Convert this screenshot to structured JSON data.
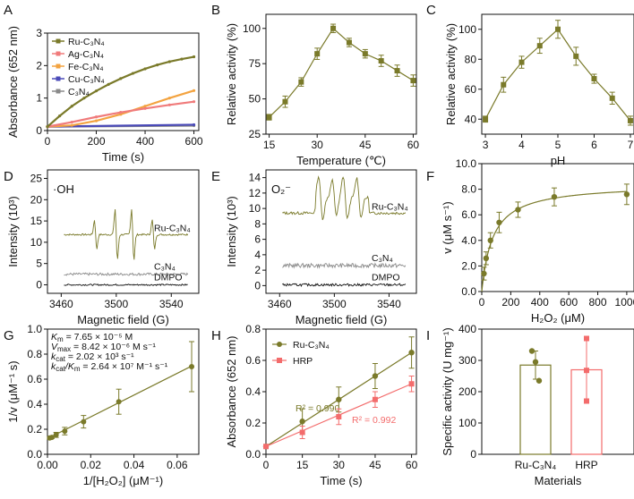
{
  "colors": {
    "olive": "#7a7a2a",
    "ag": "#f07b7b",
    "fe": "#f3a340",
    "cu": "#4a4ab8",
    "c3n4": "#8a8a8a",
    "hrp": "#f36c6c",
    "black": "#111111"
  },
  "chart_data": [
    {
      "id": "A",
      "type": "line",
      "panel_label": "A",
      "xlabel": "Time (s)",
      "ylabel": "Absorbance (652 nm)",
      "xlim": [
        0,
        620
      ],
      "ylim": [
        0,
        3
      ],
      "xticks": [
        "0",
        "200",
        "400",
        "600"
      ],
      "yticks": [
        "0",
        "1",
        "2",
        "3"
      ],
      "series": [
        {
          "name": "Ru-C₃N₄",
          "color": "#7a7a2a",
          "x": [
            0,
            50,
            100,
            150,
            200,
            250,
            300,
            350,
            400,
            450,
            500,
            550,
            600
          ],
          "y": [
            0.12,
            0.45,
            0.75,
            1.0,
            1.22,
            1.42,
            1.6,
            1.76,
            1.9,
            2.02,
            2.12,
            2.2,
            2.27
          ]
        },
        {
          "name": "Ag-C₃N₄",
          "color": "#f07b7b",
          "x": [
            0,
            100,
            200,
            300,
            400,
            500,
            600
          ],
          "y": [
            0.12,
            0.26,
            0.42,
            0.56,
            0.68,
            0.79,
            0.89
          ]
        },
        {
          "name": "Fe-C₃N₄",
          "color": "#f3a340",
          "x": [
            0,
            100,
            200,
            300,
            400,
            500,
            600
          ],
          "y": [
            0.12,
            0.16,
            0.3,
            0.5,
            0.75,
            1.0,
            1.23
          ]
        },
        {
          "name": "Cu-C₃N₄",
          "color": "#4a4ab8",
          "x": [
            0,
            600
          ],
          "y": [
            0.12,
            0.18
          ]
        },
        {
          "name": "C₃N₄",
          "color": "#8a8a8a",
          "x": [
            0,
            600
          ],
          "y": [
            0.12,
            0.15
          ]
        }
      ]
    },
    {
      "id": "B",
      "type": "line",
      "panel_label": "B",
      "xlabel": "Temperature (℃)",
      "ylabel": "Relative activity (%)",
      "xlim": [
        14,
        61
      ],
      "ylim": [
        25,
        110
      ],
      "xticks": [
        "15",
        "30",
        "45",
        "60"
      ],
      "yticks": [
        "25",
        "50",
        "75",
        "100"
      ],
      "x": [
        15,
        20,
        25,
        30,
        35,
        40,
        45,
        50,
        55,
        60
      ],
      "y": [
        37,
        48,
        62,
        82,
        100,
        90,
        82,
        77,
        70,
        63
      ],
      "err": [
        2,
        4,
        3,
        4,
        3,
        3,
        3,
        4,
        4,
        4
      ]
    },
    {
      "id": "C",
      "type": "line",
      "panel_label": "C",
      "xlabel": "pH",
      "ylabel": "Relative activity (%)",
      "xlim": [
        2.9,
        7.1
      ],
      "ylim": [
        30,
        110
      ],
      "xticks": [
        "3",
        "4",
        "5",
        "6",
        "7"
      ],
      "yticks": [
        "40",
        "60",
        "80",
        "100"
      ],
      "x": [
        3,
        3.5,
        4,
        4.5,
        5,
        5.5,
        6,
        6.5,
        7
      ],
      "y": [
        40,
        63,
        78,
        89,
        100,
        82,
        67,
        54,
        39
      ],
      "err": [
        2,
        5,
        4,
        5,
        6,
        6,
        3,
        4,
        3
      ]
    },
    {
      "id": "D",
      "type": "line",
      "panel_label": "D",
      "xlabel": "Magnetic field (G)",
      "ylabel": "Intensity (10³)",
      "xlim": [
        3450,
        3560
      ],
      "ylim": [
        -2,
        27
      ],
      "xticks": [
        "3460",
        "3500",
        "3540"
      ],
      "yticks": [
        "0",
        "5",
        "10",
        "15",
        "20",
        "25"
      ],
      "annotation": "·OH",
      "series": [
        {
          "name": "Ru-C₃N₄",
          "color": "#7a7a2a",
          "baseline": 11.8
        },
        {
          "name": "C₃N₄",
          "color": "#8a8a8a",
          "baseline": 2.5
        },
        {
          "name": "DMPO",
          "color": "#111111",
          "baseline": 0
        }
      ]
    },
    {
      "id": "E",
      "type": "line",
      "panel_label": "E",
      "xlabel": "Magnetic field (G)",
      "ylabel": "Intensity (10³)",
      "xlim": [
        3450,
        3560
      ],
      "ylim": [
        -1,
        15
      ],
      "xticks": [
        "3460",
        "3500",
        "3540"
      ],
      "yticks": [
        "0",
        "2",
        "4",
        "6",
        "8",
        "10",
        "12",
        "14"
      ],
      "annotation": "O₂⁻",
      "series": [
        {
          "name": "Ru-C₃N₄",
          "color": "#7a7a2a",
          "baseline": 9.4
        },
        {
          "name": "C₃N₄",
          "color": "#8a8a8a",
          "baseline": 2.6
        },
        {
          "name": "DMPO",
          "color": "#111111",
          "baseline": 0.1
        }
      ]
    },
    {
      "id": "F",
      "type": "scatter",
      "panel_label": "F",
      "xlabel": "H₂O₂ (μM)",
      "ylabel": "v (μM s⁻¹)",
      "xlim": [
        0,
        1050
      ],
      "ylim": [
        0,
        10
      ],
      "xticks": [
        "0",
        "200",
        "400",
        "600",
        "800",
        "1000"
      ],
      "yticks": [
        "0.0",
        "2.0",
        "4.0",
        "6.0",
        "8.0",
        "10.0"
      ],
      "x": [
        15,
        30,
        60,
        120,
        250,
        500,
        1000
      ],
      "y": [
        1.4,
        2.6,
        4.0,
        5.4,
        6.4,
        7.4,
        7.6
      ],
      "err": [
        0.5,
        0.5,
        0.6,
        0.8,
        0.6,
        0.7,
        0.8
      ],
      "fit": {
        "vmax": 8.42,
        "km": 76.5
      }
    },
    {
      "id": "G",
      "type": "scatter",
      "panel_label": "G",
      "xlabel": "1/[H₂O₂] (μM⁻¹)",
      "ylabel": "1/v (μM⁻¹ s)",
      "xlim": [
        0,
        0.07
      ],
      "ylim": [
        0,
        1.0
      ],
      "xticks": [
        "0.00",
        "0.02",
        "0.04",
        "0.06"
      ],
      "yticks": [
        "0.0",
        "0.2",
        "0.4",
        "0.6",
        "0.8",
        "1.0"
      ],
      "x": [
        0.001,
        0.002,
        0.004,
        0.008,
        0.0167,
        0.033,
        0.0667
      ],
      "y": [
        0.13,
        0.135,
        0.155,
        0.185,
        0.26,
        0.42,
        0.7
      ],
      "err": [
        0.01,
        0.01,
        0.02,
        0.03,
        0.05,
        0.1,
        0.2
      ],
      "annotations": [
        {
          "sym": "K",
          "sub": "m",
          "text": " = 7.65 × 10⁻⁵ M"
        },
        {
          "sym": "V",
          "sub": "max",
          "text": " = 8.42 × 10⁻⁶ M s⁻¹"
        },
        {
          "sym": "k",
          "sub": "cat",
          "text": " = 2.02 × 10³ s⁻¹"
        },
        {
          "sym": "k",
          "sub": "cat",
          "sym2": "/K",
          "sub2": "m",
          "text": " = 2.64 × 10⁷ M⁻¹ s⁻¹"
        }
      ]
    },
    {
      "id": "H",
      "type": "line",
      "panel_label": "H",
      "xlabel": "Time (s)",
      "ylabel": "Absorbance (652 nm)",
      "xlim": [
        0,
        62
      ],
      "ylim": [
        0,
        0.8
      ],
      "xticks": [
        "0",
        "15",
        "30",
        "45",
        "60"
      ],
      "yticks": [
        "0.0",
        "0.2",
        "0.4",
        "0.6",
        "0.8"
      ],
      "series": [
        {
          "name": "Ru-C₃N₄",
          "color": "#7a7a2a",
          "x": [
            0,
            15,
            30,
            45,
            60
          ],
          "y": [
            0.05,
            0.21,
            0.35,
            0.5,
            0.65
          ],
          "err": [
            0.01,
            0.08,
            0.08,
            0.08,
            0.1
          ],
          "r2": "R² = 0.990"
        },
        {
          "name": "HRP",
          "color": "#f36c6c",
          "x": [
            0,
            15,
            30,
            45,
            60
          ],
          "y": [
            0.05,
            0.14,
            0.24,
            0.35,
            0.45
          ],
          "err": [
            0.01,
            0.04,
            0.05,
            0.05,
            0.05
          ],
          "r2": "R² = 0.992"
        }
      ]
    },
    {
      "id": "I",
      "type": "bar",
      "panel_label": "I",
      "xlabel": "Materials",
      "ylabel": "Specific activity (U mg⁻¹)",
      "ylim": [
        0,
        400
      ],
      "yticks": [
        "0",
        "100",
        "200",
        "300",
        "400"
      ],
      "categories": [
        "Ru-C₃N₄",
        "HRP"
      ],
      "values": [
        285,
        270
      ],
      "err": [
        45,
        100
      ],
      "points": [
        [
          330,
          295,
          235
        ],
        [
          370,
          268,
          170
        ]
      ],
      "colors": [
        "#7a7a2a",
        "#f36c6c"
      ]
    }
  ]
}
